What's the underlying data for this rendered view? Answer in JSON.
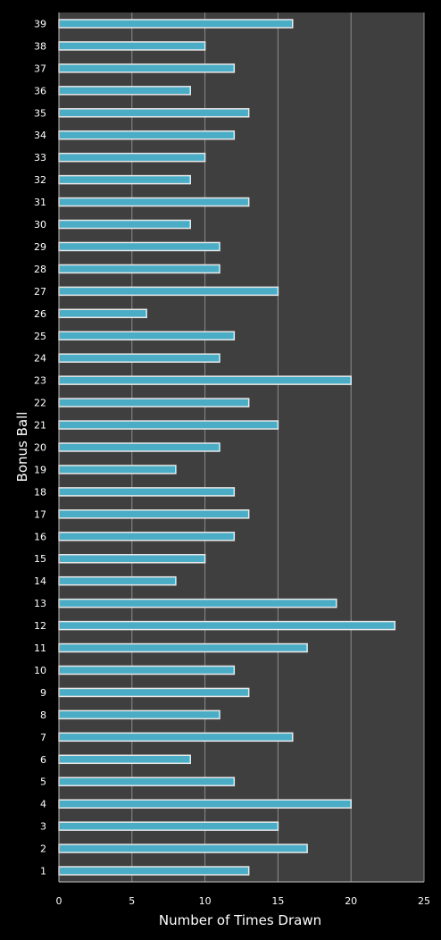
{
  "chart_data": {
    "type": "bar",
    "orientation": "horizontal",
    "title": "",
    "xlabel": "Number of Times Drawn",
    "ylabel": "Bonus Ball",
    "xlim": [
      0,
      25
    ],
    "xticks": [
      0,
      5,
      10,
      15,
      20,
      25
    ],
    "grid": true,
    "legend": "none",
    "categories": [
      "1",
      "2",
      "3",
      "4",
      "5",
      "6",
      "7",
      "8",
      "9",
      "10",
      "11",
      "12",
      "13",
      "14",
      "15",
      "16",
      "17",
      "18",
      "19",
      "20",
      "21",
      "22",
      "23",
      "24",
      "25",
      "26",
      "27",
      "28",
      "29",
      "30",
      "31",
      "32",
      "33",
      "34",
      "35",
      "36",
      "37",
      "38",
      "39"
    ],
    "values": [
      13,
      17,
      15,
      20,
      12,
      9,
      16,
      11,
      13,
      12,
      17,
      23,
      19,
      8,
      10,
      12,
      13,
      12,
      8,
      11,
      15,
      13,
      20,
      11,
      12,
      6,
      15,
      11,
      11,
      9,
      13,
      9,
      10,
      12,
      13,
      9,
      12,
      10,
      16
    ],
    "colors": {
      "background": "#000000",
      "plot_area": "#3f3f3f",
      "gridline": "#8c8c8c",
      "bar_fill": "#4bacc6",
      "bar_border": "#e8e8e8",
      "text": "#ffffff"
    }
  }
}
